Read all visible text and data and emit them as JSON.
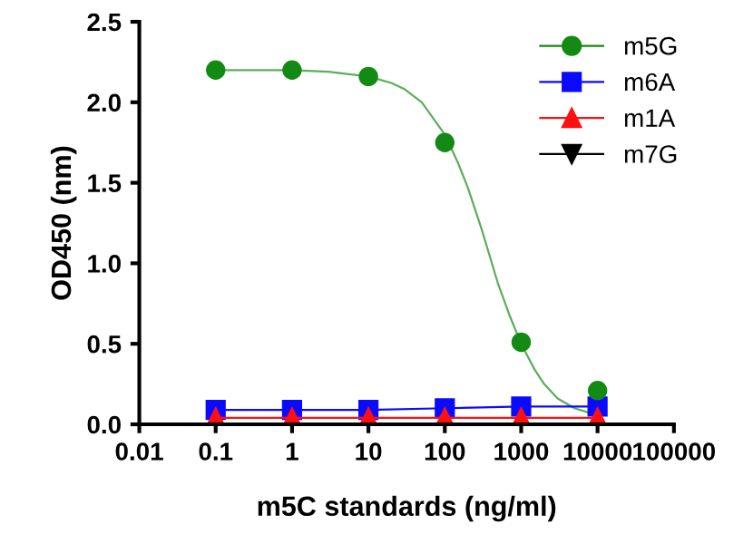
{
  "chart_data": {
    "type": "line",
    "xlabel": "m5C standards (ng/ml)",
    "ylabel": "OD450 (nm)",
    "log": "x",
    "xlim": [
      0.01,
      100000
    ],
    "xticks": [
      0.01,
      0.1,
      1,
      10,
      100,
      1000,
      10000,
      100000
    ],
    "ylim": [
      0,
      2.5
    ],
    "yticks": [
      {
        "value": 0,
        "label": "0.0"
      },
      0.5,
      {
        "value": 1,
        "label": "1.0"
      },
      1.5,
      {
        "value": 2,
        "label": "2.0"
      },
      2.5
    ],
    "grid": false,
    "legend": "top right",
    "x": [
      0.1,
      1,
      10,
      100,
      1000,
      10000
    ],
    "series": [
      {
        "color": "#5cad5c",
        "marker": "none",
        "x": [
          0.1,
          1,
          3,
          10,
          20,
          30,
          50,
          100,
          150,
          200,
          300,
          500,
          700,
          1000,
          1500,
          2000,
          3000,
          5000,
          8000
        ],
        "values": [
          2.2,
          2.2,
          2.19,
          2.16,
          2.12,
          2.08,
          2.0,
          1.8,
          1.62,
          1.47,
          1.22,
          0.87,
          0.68,
          0.5,
          0.34,
          0.25,
          0.16,
          0.1,
          0.07
        ]
      },
      {
        "type": "scatter",
        "name": "m5G",
        "color": "#138a13",
        "marker": "circle",
        "values": [
          2.2,
          2.2,
          2.16,
          1.75,
          0.51,
          0.21
        ]
      },
      {
        "name": "m6A",
        "color": "#0a0aff",
        "marker": "square",
        "values": [
          0.09,
          0.09,
          0.09,
          0.1,
          0.11,
          0.11
        ]
      },
      {
        "name": "m1A",
        "color": "#ff1010",
        "marker": "triangle",
        "values": [
          0.04,
          0.04,
          0.04,
          0.04,
          0.04,
          0.04
        ]
      },
      {
        "name": "m7G",
        "color": "#000000",
        "marker": "triangle_down",
        "values": [
          null,
          null,
          null,
          null,
          null,
          null
        ]
      }
    ]
  }
}
